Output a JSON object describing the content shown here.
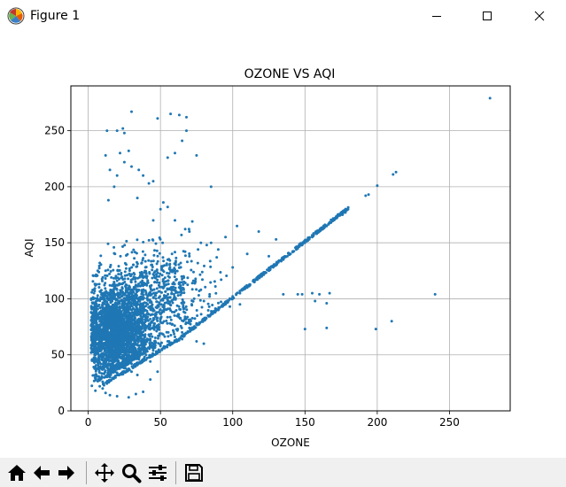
{
  "window": {
    "title": "Figure 1",
    "icons": {
      "app": "matplotlib-logo-icon",
      "minimize": "minimize-icon",
      "maximize": "maximize-icon",
      "close": "close-icon"
    }
  },
  "toolbar": {
    "buttons": [
      {
        "name": "home-button",
        "icon": "home-icon"
      },
      {
        "name": "back-button",
        "icon": "arrow-left-icon"
      },
      {
        "name": "forward-button",
        "icon": "arrow-right-icon"
      },
      {
        "name": "pan-button",
        "icon": "move-icon"
      },
      {
        "name": "zoom-button",
        "icon": "magnifier-icon"
      },
      {
        "name": "subplots-button",
        "icon": "sliders-icon"
      },
      {
        "name": "save-button",
        "icon": "floppy-disk-icon"
      }
    ]
  },
  "chart_data": {
    "type": "scatter",
    "title": "OZONE VS AQI",
    "xlabel": "OZONE",
    "ylabel": "AQI",
    "xlim": [
      -12,
      292
    ],
    "ylim": [
      0,
      290
    ],
    "xticks": [
      0,
      50,
      100,
      150,
      200,
      250
    ],
    "yticks": [
      0,
      50,
      100,
      150,
      200,
      250
    ],
    "grid": true,
    "series": [
      {
        "color": "#1f77b4",
        "marker_size": 1.5,
        "points": [
          [
            278,
            279
          ],
          [
            240,
            104
          ],
          [
            211,
            211
          ],
          [
            213,
            213
          ],
          [
            200,
            201
          ],
          [
            194,
            193
          ],
          [
            192,
            192
          ],
          [
            210,
            80
          ],
          [
            199,
            73
          ],
          [
            165,
            74
          ],
          [
            150,
            73
          ],
          [
            155,
            105
          ],
          [
            160,
            104
          ],
          [
            167,
            105
          ],
          [
            148,
            104
          ],
          [
            157,
            98
          ],
          [
            165,
            96
          ],
          [
            85,
            200
          ],
          [
            75,
            228
          ],
          [
            55,
            226
          ],
          [
            30,
            267
          ],
          [
            48,
            261
          ],
          [
            57,
            265
          ],
          [
            63,
            264
          ],
          [
            68,
            262
          ],
          [
            68,
            250
          ],
          [
            65,
            241
          ],
          [
            60,
            230
          ],
          [
            20,
            250
          ],
          [
            24,
            252
          ],
          [
            25,
            248
          ],
          [
            13,
            250
          ],
          [
            12,
            228
          ],
          [
            22,
            230
          ],
          [
            28,
            232
          ],
          [
            25,
            222
          ],
          [
            30,
            218
          ],
          [
            35,
            215
          ],
          [
            38,
            210
          ],
          [
            45,
            205
          ],
          [
            55,
            182
          ],
          [
            50,
            180
          ],
          [
            45,
            170
          ],
          [
            15,
            215
          ],
          [
            20,
            210
          ],
          [
            18,
            200
          ],
          [
            14,
            188
          ],
          [
            52,
            186
          ],
          [
            34,
            190
          ],
          [
            42,
            203
          ],
          [
            178,
            177
          ],
          [
            176,
            175
          ],
          [
            172,
            172
          ],
          [
            168,
            168
          ],
          [
            165,
            165
          ],
          [
            162,
            162
          ],
          [
            158,
            158
          ],
          [
            155,
            155
          ],
          [
            152,
            152
          ],
          [
            148,
            148
          ],
          [
            145,
            145
          ],
          [
            140,
            140
          ],
          [
            135,
            135
          ],
          [
            130,
            130
          ],
          [
            125,
            125
          ],
          [
            120,
            120
          ],
          [
            115,
            115
          ],
          [
            110,
            110
          ],
          [
            105,
            105
          ],
          [
            100,
            100
          ],
          [
            95,
            95
          ],
          [
            90,
            90
          ],
          [
            85,
            86
          ],
          [
            80,
            82
          ],
          [
            75,
            78
          ],
          [
            70,
            74
          ],
          [
            65,
            70
          ],
          [
            60,
            66
          ],
          [
            55,
            62
          ],
          [
            50,
            58
          ],
          [
            45,
            54
          ],
          [
            40,
            50
          ],
          [
            35,
            46
          ],
          [
            30,
            42
          ],
          [
            25,
            38
          ],
          [
            20,
            34
          ],
          [
            15,
            30
          ],
          [
            10,
            26
          ],
          [
            8,
            22
          ],
          [
            5,
            18
          ],
          [
            103,
            165
          ],
          [
            118,
            160
          ],
          [
            130,
            153
          ],
          [
            95,
            155
          ],
          [
            85,
            150
          ],
          [
            70,
            160
          ],
          [
            60,
            170
          ],
          [
            72,
            169
          ],
          [
            78,
            150
          ],
          [
            90,
            144
          ],
          [
            110,
            140
          ],
          [
            125,
            138
          ],
          [
            100,
            128
          ],
          [
            115,
            115
          ],
          [
            92,
            117
          ],
          [
            88,
            111
          ],
          [
            135,
            104
          ],
          [
            145,
            104
          ],
          [
            105,
            95
          ],
          [
            98,
            93
          ],
          [
            80,
            60
          ],
          [
            75,
            62
          ],
          [
            65,
            64
          ],
          [
            4,
            105
          ],
          [
            3,
            96
          ],
          [
            2,
            88
          ],
          [
            2,
            76
          ],
          [
            3,
            64
          ],
          [
            2,
            52
          ],
          [
            4,
            44
          ],
          [
            5,
            38
          ],
          [
            6,
            31
          ],
          [
            10,
            20
          ],
          [
            12,
            16
          ],
          [
            15,
            14
          ],
          [
            20,
            13
          ],
          [
            28,
            12
          ],
          [
            33,
            15
          ],
          [
            38,
            17
          ],
          [
            43,
            28
          ],
          [
            48,
            35
          ],
          [
            8,
            132
          ],
          [
            12,
            125
          ],
          [
            16,
            119
          ],
          [
            20,
            112
          ],
          [
            24,
            106
          ],
          [
            28,
            101
          ],
          [
            32,
            95
          ],
          [
            36,
            90
          ],
          [
            40,
            84
          ],
          [
            44,
            79
          ],
          [
            48,
            73
          ],
          [
            52,
            68
          ],
          [
            56,
            62
          ],
          [
            9,
            101
          ],
          [
            13,
            97
          ],
          [
            17,
            92
          ],
          [
            21,
            87
          ],
          [
            25,
            82
          ],
          [
            29,
            77
          ],
          [
            33,
            72
          ],
          [
            37,
            67
          ],
          [
            41,
            63
          ],
          [
            45,
            58
          ],
          [
            7,
            86
          ],
          [
            11,
            81
          ],
          [
            15,
            77
          ],
          [
            19,
            72
          ],
          [
            23,
            67
          ],
          [
            27,
            62
          ],
          [
            31,
            57
          ],
          [
            35,
            53
          ],
          [
            39,
            48
          ],
          [
            43,
            44
          ],
          [
            6,
            60
          ],
          [
            10,
            56
          ],
          [
            14,
            52
          ],
          [
            18,
            47
          ],
          [
            22,
            42
          ],
          [
            26,
            38
          ],
          [
            30,
            35
          ],
          [
            34,
            32
          ],
          [
            6,
            72
          ],
          [
            10,
            68
          ],
          [
            14,
            64
          ],
          [
            18,
            60
          ],
          [
            22,
            55
          ],
          [
            26,
            50
          ],
          [
            30,
            46
          ],
          [
            34,
            43
          ],
          [
            60,
            126
          ],
          [
            66,
            120
          ],
          [
            72,
            114
          ],
          [
            78,
            108
          ],
          [
            84,
            102
          ],
          [
            64,
            132
          ],
          [
            70,
            138
          ],
          [
            76,
            144
          ],
          [
            82,
            148
          ],
          [
            58,
            140
          ]
        ],
        "dense_cluster": {
          "x_center": 20,
          "x_spread": 22,
          "y_center": 70,
          "y_spread": 45,
          "count": 2600
        },
        "mid_cluster": {
          "x_center": 45,
          "x_spread": 28,
          "y_center": 105,
          "y_spread": 30,
          "count": 700
        },
        "diagonal_edge": {
          "x_from": 10,
          "x_to": 180,
          "count": 500
        }
      }
    ]
  }
}
